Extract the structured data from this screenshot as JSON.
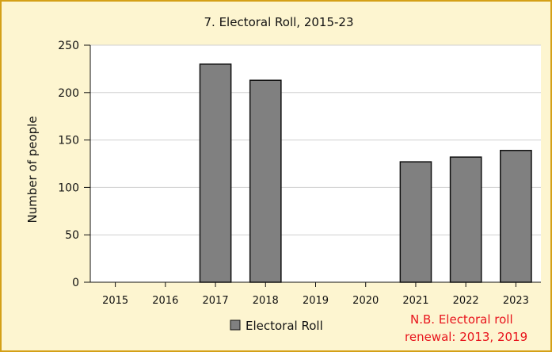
{
  "chart_data": {
    "type": "bar",
    "title": "7. Electoral Roll, 2015-23",
    "xlabel": "",
    "ylabel": "Number of people",
    "categories": [
      "2015",
      "2016",
      "2017",
      "2018",
      "2019",
      "2020",
      "2021",
      "2022",
      "2023"
    ],
    "series": [
      {
        "name": "Electoral Roll",
        "values": [
          0,
          0,
          230,
          213,
          0,
          0,
          127,
          132,
          139
        ]
      }
    ],
    "ylim": [
      0,
      250
    ],
    "yticks": [
      0,
      50,
      100,
      150,
      200,
      250
    ],
    "grid": true,
    "legend_position": "bottom",
    "annotation": [
      "N.B. Electoral roll",
      "renewal: 2013, 2019"
    ]
  },
  "colors": {
    "background": "#fdf5d0",
    "border": "#d4a017",
    "plot_background": "#ffffff",
    "bar_fill": "#808080",
    "bar_stroke": "#111111",
    "gridline": "#d0d0d0",
    "annotation": "#e8141c"
  }
}
